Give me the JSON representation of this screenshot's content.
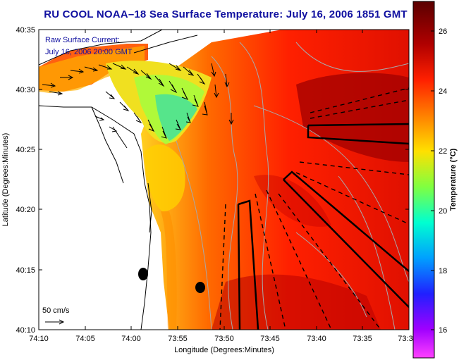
{
  "title": "RU COOL  NOAA–18  Sea Surface Temperature:  July 16, 2006 1851 GMT",
  "overlay": {
    "line1": "Raw Surface Current:",
    "line2": "July 16, 2006 20:00 GMT"
  },
  "scale_label": "50 cm/s",
  "x_axis": {
    "label": "Longitude (Degrees:Minutes)",
    "ticks": [
      "74:10",
      "74:05",
      "74:00",
      "73:55",
      "73:50",
      "73:45",
      "73:40",
      "73:35",
      "73:3"
    ]
  },
  "y_axis": {
    "label": "Latitude (Degrees:Minutes)",
    "ticks": [
      "40:35",
      "40:30",
      "40:25",
      "40:20",
      "40:15",
      "40:10"
    ]
  },
  "colorbar": {
    "label": "Temperature (°C)",
    "ticks": [
      "26",
      "24",
      "22",
      "20",
      "18",
      "16"
    ],
    "colors": [
      "#5a0000",
      "#b00000",
      "#ff2000",
      "#ff8000",
      "#ffe000",
      "#80ff40",
      "#00ffd0",
      "#00a0ff",
      "#2020ff",
      "#a000ff",
      "#ff40ff"
    ]
  }
}
